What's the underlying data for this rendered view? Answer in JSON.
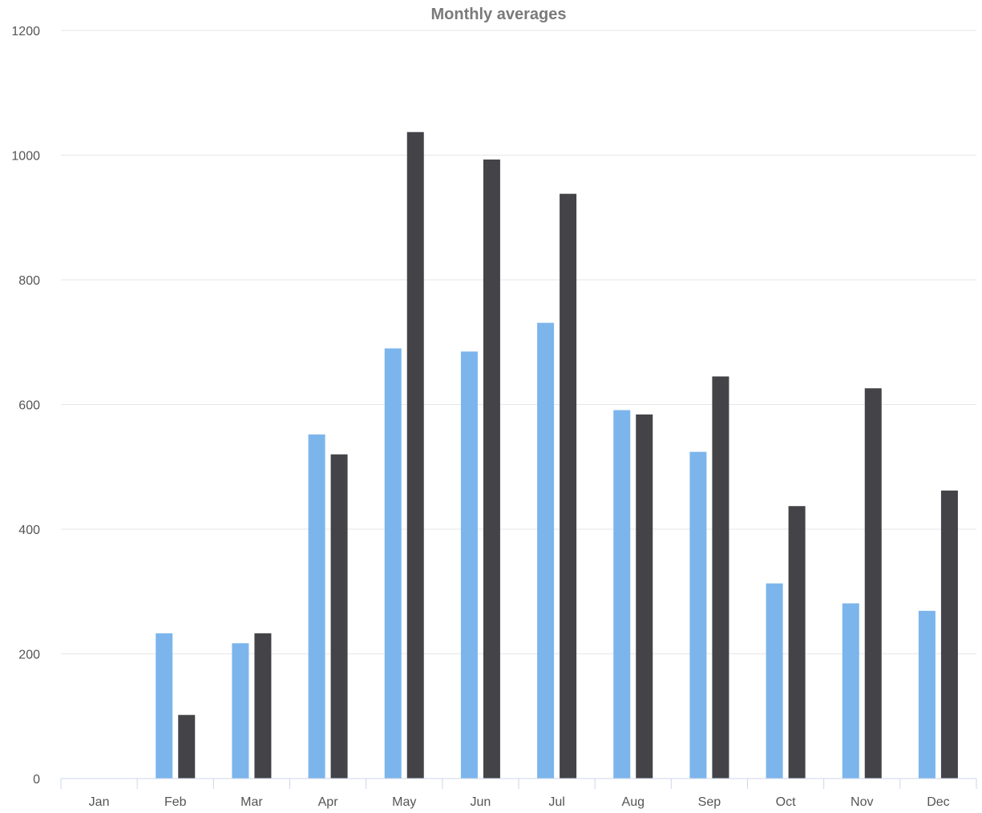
{
  "chart_data": {
    "type": "bar",
    "title": "Monthly averages",
    "xlabel": "",
    "ylabel": "",
    "categories": [
      "Jan",
      "Feb",
      "Mar",
      "Apr",
      "May",
      "Jun",
      "Jul",
      "Aug",
      "Sep",
      "Oct",
      "Nov",
      "Dec"
    ],
    "series": [
      {
        "color": "#7cb5ec",
        "values": [
          0,
          233,
          217,
          552,
          690,
          685,
          731,
          591,
          524,
          313,
          281,
          269
        ]
      },
      {
        "color": "#434348",
        "values": [
          0,
          102,
          233,
          520,
          1037,
          993,
          938,
          584,
          645,
          437,
          626,
          462
        ]
      }
    ],
    "ylim": [
      0,
      1200
    ],
    "yticks": [
      0,
      200,
      400,
      600,
      800,
      1000,
      1200
    ],
    "grid": true,
    "legend": "none"
  }
}
